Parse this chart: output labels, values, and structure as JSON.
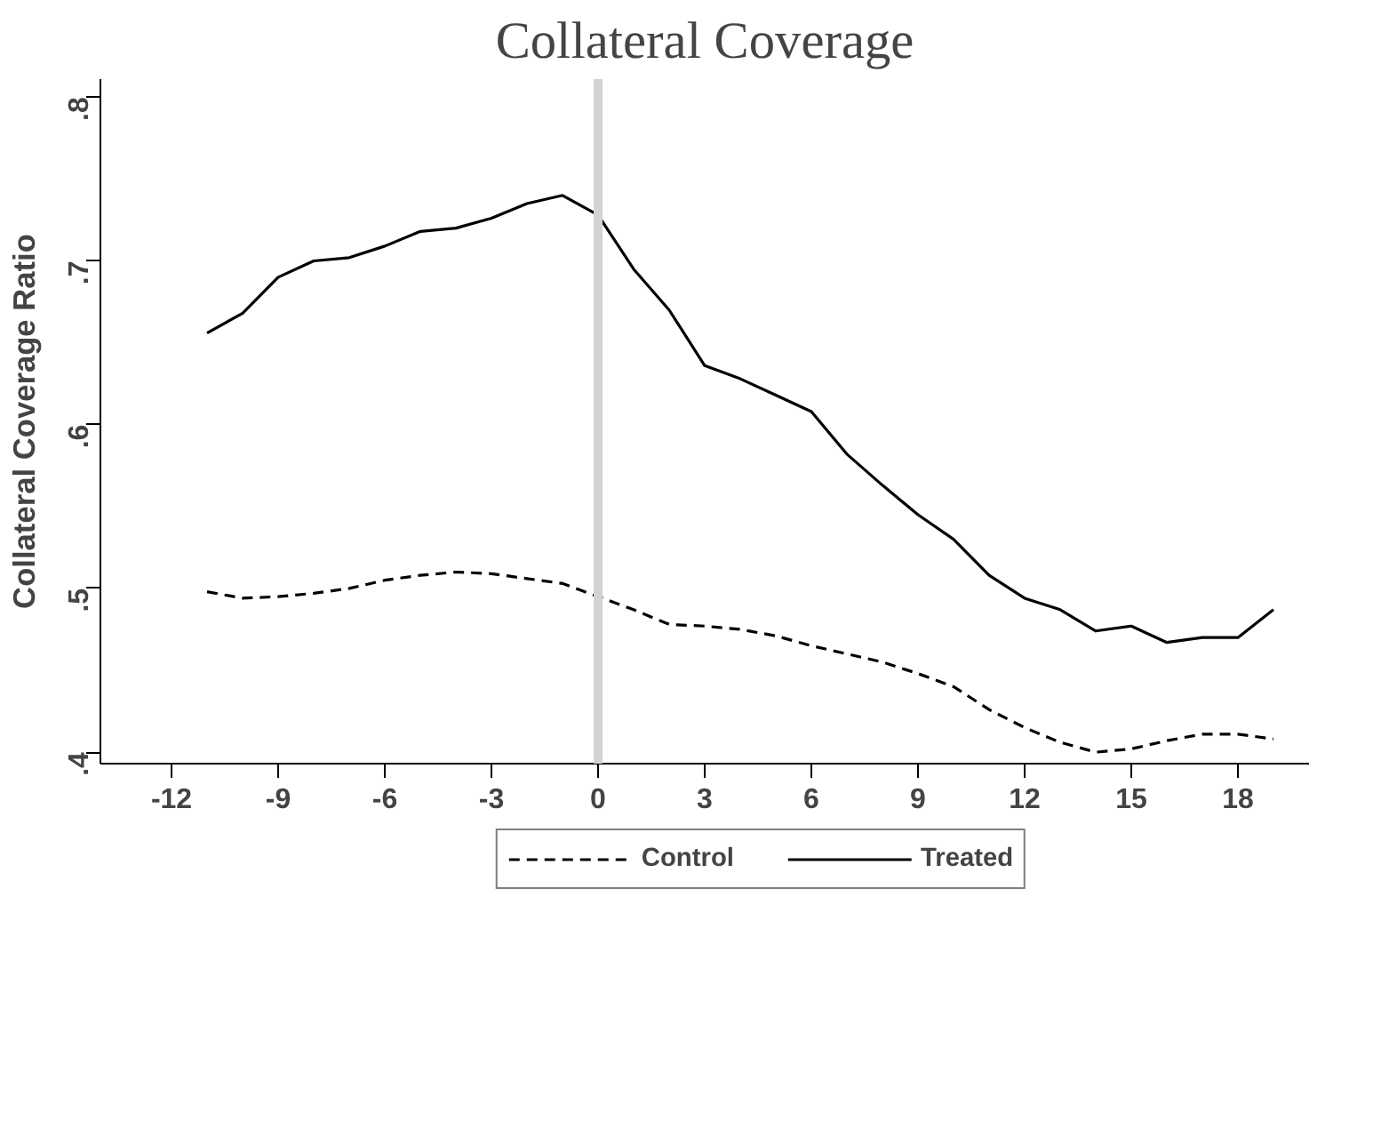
{
  "chart_data": {
    "type": "line",
    "title": "Collateral Coverage",
    "ylabel": "Collateral Coverage Ratio",
    "x": [
      -11,
      -10,
      -9,
      -8,
      -7,
      -6,
      -5,
      -4,
      -3,
      -2,
      -1,
      0,
      1,
      2,
      3,
      4,
      5,
      6,
      7,
      8,
      9,
      10,
      11,
      12,
      13,
      14,
      15,
      16,
      17,
      18,
      19
    ],
    "series": [
      {
        "name": "Control",
        "color": "#000000",
        "line_style": "dashed",
        "values": [
          0.498,
          0.494,
          0.495,
          0.497,
          0.5,
          0.505,
          0.508,
          0.51,
          0.509,
          0.506,
          0.503,
          0.495,
          0.487,
          0.478,
          0.477,
          0.475,
          0.471,
          0.465,
          0.46,
          0.455,
          0.448,
          0.44,
          0.426,
          0.415,
          0.406,
          0.4,
          0.402,
          0.407,
          0.411,
          0.411,
          0.408
        ]
      },
      {
        "name": "Treated",
        "color": "#000000",
        "line_style": "solid",
        "values": [
          0.656,
          0.668,
          0.69,
          0.7,
          0.702,
          0.709,
          0.718,
          0.72,
          0.726,
          0.735,
          0.74,
          0.728,
          0.695,
          0.67,
          0.636,
          0.628,
          0.618,
          0.608,
          0.582,
          0.563,
          0.545,
          0.53,
          0.508,
          0.494,
          0.487,
          0.474,
          0.477,
          0.467,
          0.47,
          0.47,
          0.487
        ]
      }
    ],
    "xlim": [
      -14,
      20
    ],
    "ylim": [
      0.393,
      0.811
    ],
    "xticks": [
      -12,
      -9,
      -6,
      -3,
      0,
      3,
      6,
      9,
      12,
      15,
      18
    ],
    "yticks": [
      {
        "value": 0.4,
        "label": ".4"
      },
      {
        "value": 0.5,
        "label": ".5"
      },
      {
        "value": 0.6,
        "label": ".6"
      },
      {
        "value": 0.7,
        "label": ".7"
      },
      {
        "value": 0.8,
        "label": ".8"
      }
    ],
    "ref_lines": [
      {
        "axis": "x",
        "value": 0,
        "color": "#d3d3d3"
      }
    ],
    "grid": false,
    "legend": "bottom",
    "marker": "none"
  }
}
